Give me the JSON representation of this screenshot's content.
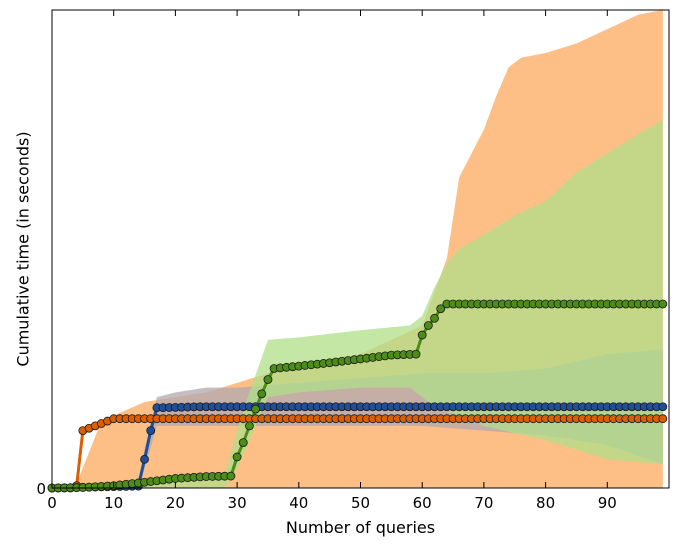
{
  "chart_data": {
    "type": "line",
    "title": "",
    "xlabel": "Number of queries",
    "ylabel": "Cumulative time (in seconds)",
    "xlim": [
      0,
      100
    ],
    "ylim": [
      0,
      10
    ],
    "x_ticks": [
      0,
      10,
      20,
      30,
      40,
      50,
      60,
      70,
      80,
      90
    ],
    "y_ticks": [
      0
    ],
    "grid": false,
    "legend": "none",
    "series": [
      {
        "color": "#d95f02",
        "band_color": "#fdbf86",
        "points": [
          [
            0,
            0
          ],
          [
            1,
            0
          ],
          [
            2,
            0
          ],
          [
            3,
            0
          ],
          [
            4,
            0.05
          ],
          [
            5,
            1.2
          ],
          [
            6,
            1.25
          ],
          [
            7,
            1.3
          ],
          [
            8,
            1.35
          ],
          [
            9,
            1.4
          ],
          [
            10,
            1.45
          ],
          [
            11,
            1.45
          ],
          [
            99,
            1.45
          ]
        ],
        "band_upper": [
          [
            0,
            0
          ],
          [
            4,
            0.1
          ],
          [
            8,
            1.4
          ],
          [
            15,
            1.8
          ],
          [
            20,
            1.9
          ],
          [
            25,
            2.0
          ],
          [
            30,
            2.2
          ],
          [
            35,
            2.4
          ],
          [
            40,
            2.6
          ],
          [
            50,
            2.8
          ],
          [
            60,
            3.4
          ],
          [
            64,
            4.8
          ],
          [
            66,
            6.5
          ],
          [
            70,
            7.5
          ],
          [
            72,
            8.2
          ],
          [
            74,
            8.8
          ],
          [
            76,
            9.0
          ],
          [
            80,
            9.1
          ],
          [
            85,
            9.3
          ],
          [
            90,
            9.6
          ],
          [
            95,
            9.9
          ],
          [
            99,
            10.0
          ]
        ],
        "band_lower": [
          [
            0,
            0
          ],
          [
            8,
            0
          ],
          [
            10,
            0
          ],
          [
            20,
            0
          ],
          [
            30,
            0
          ],
          [
            40,
            0
          ],
          [
            50,
            0
          ],
          [
            60,
            0
          ],
          [
            70,
            0
          ],
          [
            80,
            0
          ],
          [
            90,
            0
          ],
          [
            99,
            0
          ]
        ]
      },
      {
        "color": "#1f4e9a",
        "band_color": "#b0a8b0",
        "points": [
          [
            0,
            0
          ],
          [
            14,
            0.04
          ],
          [
            15,
            0.6
          ],
          [
            16,
            1.2
          ],
          [
            17,
            1.68
          ],
          [
            18,
            1.68
          ],
          [
            24,
            1.7
          ],
          [
            99,
            1.7
          ]
        ],
        "band_upper": [
          [
            0,
            0
          ],
          [
            14,
            0.1
          ],
          [
            15,
            0.8
          ],
          [
            17,
            1.9
          ],
          [
            20,
            2.0
          ],
          [
            25,
            2.1
          ],
          [
            30,
            2.1
          ],
          [
            40,
            2.2
          ],
          [
            50,
            2.3
          ],
          [
            60,
            2.4
          ],
          [
            65,
            2.4
          ],
          [
            70,
            2.4
          ],
          [
            80,
            2.5
          ],
          [
            90,
            2.8
          ],
          [
            99,
            2.9
          ]
        ],
        "band_lower": [
          [
            0,
            0
          ],
          [
            14,
            0
          ],
          [
            15,
            0.4
          ],
          [
            17,
            1.3
          ],
          [
            20,
            1.3
          ],
          [
            30,
            1.3
          ],
          [
            40,
            1.3
          ],
          [
            60,
            1.3
          ],
          [
            70,
            1.2
          ],
          [
            80,
            1.1
          ],
          [
            90,
            0.9
          ],
          [
            99,
            0.5
          ]
        ]
      },
      {
        "color": "#4c8c18",
        "band_color": "#b0df88",
        "points": [
          [
            0,
            0
          ],
          [
            5,
            0.01
          ],
          [
            10,
            0.05
          ],
          [
            15,
            0.12
          ],
          [
            20,
            0.2
          ],
          [
            25,
            0.24
          ],
          [
            29,
            0.25
          ],
          [
            30,
            0.65
          ],
          [
            31,
            0.95
          ],
          [
            32,
            1.3
          ],
          [
            33,
            1.65
          ],
          [
            34,
            1.97
          ],
          [
            35,
            2.27
          ],
          [
            36,
            2.5
          ],
          [
            40,
            2.55
          ],
          [
            45,
            2.62
          ],
          [
            50,
            2.7
          ],
          [
            55,
            2.78
          ],
          [
            59,
            2.8
          ],
          [
            60,
            3.2
          ],
          [
            61,
            3.4
          ],
          [
            62,
            3.55
          ],
          [
            63,
            3.75
          ],
          [
            64,
            3.85
          ],
          [
            65,
            3.85
          ],
          [
            99,
            3.85
          ]
        ],
        "band_upper": [
          [
            0,
            0
          ],
          [
            28,
            0.3
          ],
          [
            30,
            1.2
          ],
          [
            32,
            2.0
          ],
          [
            35,
            3.1
          ],
          [
            40,
            3.15
          ],
          [
            50,
            3.3
          ],
          [
            58,
            3.4
          ],
          [
            60,
            3.6
          ],
          [
            62,
            4.2
          ],
          [
            64,
            4.7
          ],
          [
            66,
            5.0
          ],
          [
            70,
            5.3
          ],
          [
            75,
            5.7
          ],
          [
            80,
            6.0
          ],
          [
            85,
            6.6
          ],
          [
            90,
            7.0
          ],
          [
            95,
            7.4
          ],
          [
            99,
            7.7
          ]
        ],
        "band_lower": [
          [
            0,
            0
          ],
          [
            28,
            0
          ],
          [
            30,
            0.4
          ],
          [
            32,
            1.0
          ],
          [
            35,
            1.9
          ],
          [
            40,
            2.0
          ],
          [
            50,
            2.1
          ],
          [
            58,
            2.1
          ],
          [
            60,
            1.9
          ],
          [
            62,
            1.7
          ],
          [
            64,
            1.6
          ],
          [
            70,
            1.3
          ],
          [
            80,
            1.0
          ],
          [
            90,
            0.6
          ],
          [
            99,
            0.5
          ]
        ]
      }
    ]
  }
}
